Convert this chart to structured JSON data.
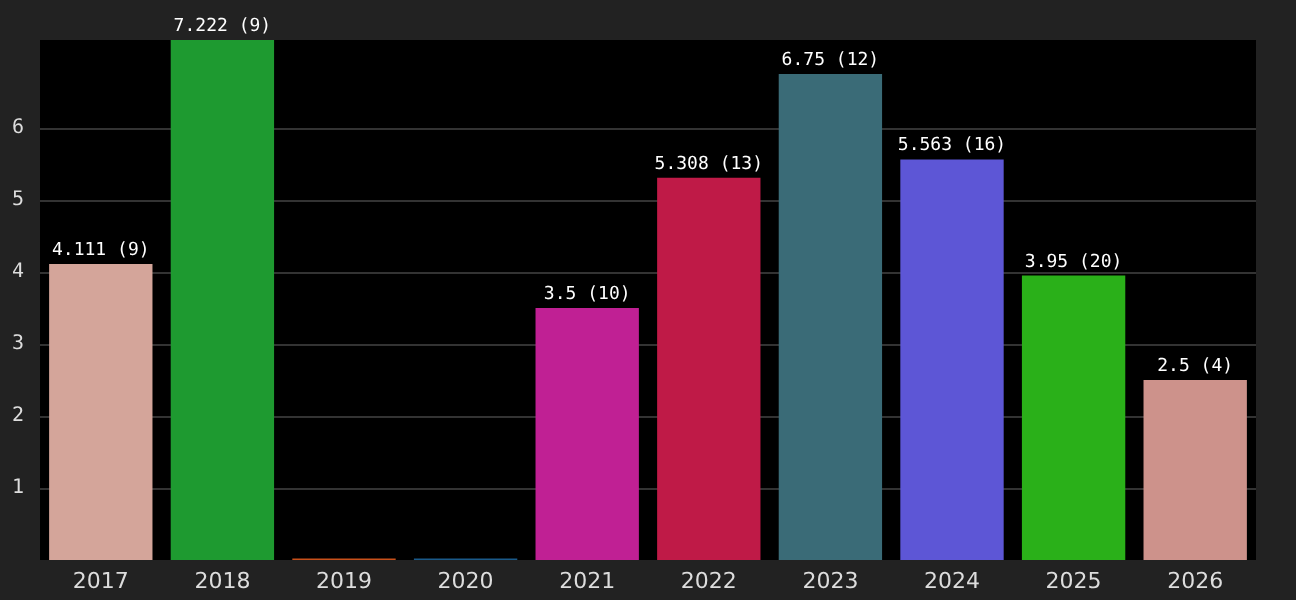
{
  "chart_data": {
    "type": "bar",
    "categories": [
      "2017",
      "2018",
      "2019",
      "2020",
      "2021",
      "2022",
      "2023",
      "2024",
      "2025",
      "2026"
    ],
    "values": [
      4.111,
      7.222,
      0.02,
      0.02,
      3.5,
      5.308,
      6.75,
      5.563,
      3.95,
      2.5
    ],
    "colors": [
      "#d4a59a",
      "#1e9a30",
      "#c8501a",
      "#1a5a8a",
      "#c02094",
      "#bf1a47",
      "#3a6b77",
      "#5d56d6",
      "#2ab019",
      "#cd928b"
    ],
    "value_labels": [
      "4.111 (9)",
      "7.222 (9)",
      null,
      null,
      "3.5 (10)",
      "5.308 (13)",
      "6.75 (12)",
      "5.563 (16)",
      "3.95 (20)",
      "2.5 (4)"
    ],
    "ylim": [
      0,
      7.222
    ],
    "yticks": [
      1,
      2,
      3,
      4,
      5,
      6
    ],
    "grid": "y"
  }
}
